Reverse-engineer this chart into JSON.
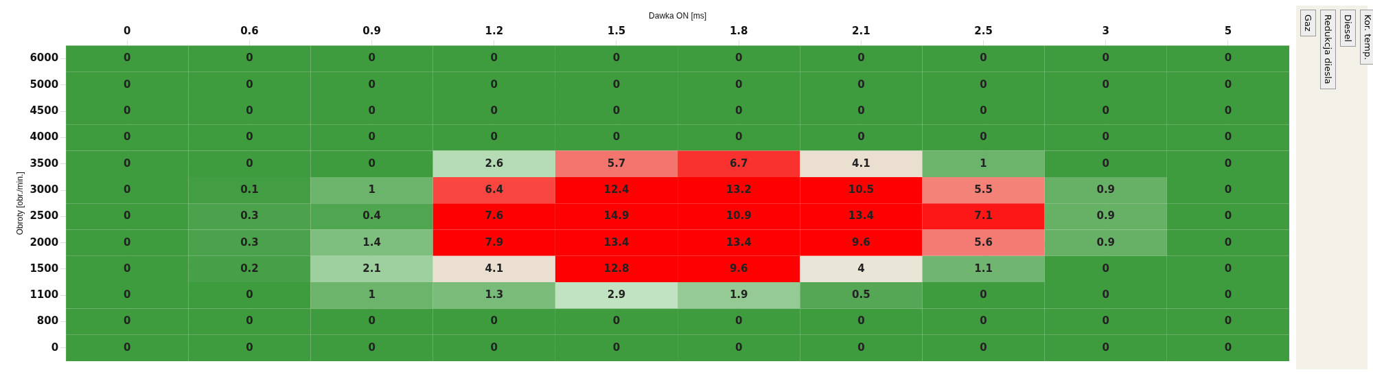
{
  "chart_data": {
    "type": "heatmap",
    "xlabel": "Dawka ON [ms]",
    "ylabel": "Obroty [obr./min.]",
    "categories": [
      "0",
      "0.6",
      "0.9",
      "1.2",
      "1.5",
      "1.8",
      "2.1",
      "2.5",
      "3",
      "5"
    ],
    "y_categories": [
      "6000",
      "5000",
      "4500",
      "4000",
      "3500",
      "3000",
      "2500",
      "2000",
      "1500",
      "1100",
      "800",
      "0"
    ],
    "cells": [
      [
        0,
        0,
        0,
        0,
        0,
        0,
        0,
        0,
        0,
        0
      ],
      [
        0,
        0,
        0,
        0,
        0,
        0,
        0,
        0,
        0,
        0
      ],
      [
        0,
        0,
        0,
        0,
        0,
        0,
        0,
        0,
        0,
        0
      ],
      [
        0,
        0,
        0,
        0,
        0,
        0,
        0,
        0,
        0,
        0
      ],
      [
        0,
        0,
        0,
        2.6,
        5.7,
        6.7,
        4.1,
        1,
        0,
        0
      ],
      [
        0,
        0.1,
        1,
        6.4,
        12.4,
        13.2,
        10.5,
        5.5,
        0.9,
        0
      ],
      [
        0,
        0.3,
        0.4,
        7.6,
        14.9,
        10.9,
        13.4,
        7.1,
        0.9,
        0
      ],
      [
        0,
        0.3,
        1.4,
        7.9,
        13.4,
        13.4,
        9.6,
        5.6,
        0.9,
        0
      ],
      [
        0,
        0.2,
        2.1,
        4.1,
        12.8,
        9.6,
        4,
        1.1,
        0,
        0
      ],
      [
        0,
        0,
        1,
        1.3,
        2.9,
        1.9,
        0.5,
        0,
        0,
        0
      ],
      [
        0,
        0,
        0,
        0,
        0,
        0,
        0,
        0,
        0,
        0
      ],
      [
        0,
        0,
        0,
        0,
        0,
        0,
        0,
        0,
        0,
        0
      ]
    ],
    "colors": [
      "#3e9b3e",
      "#e8f8e8",
      "#ff0000",
      "#ff0000",
      "#ff0000"
    ],
    "data_labels": true,
    "grid": true,
    "annotations": [
      "Gaz",
      "Redukcja diesla",
      "Diesel",
      "Kor. temp."
    ]
  }
}
